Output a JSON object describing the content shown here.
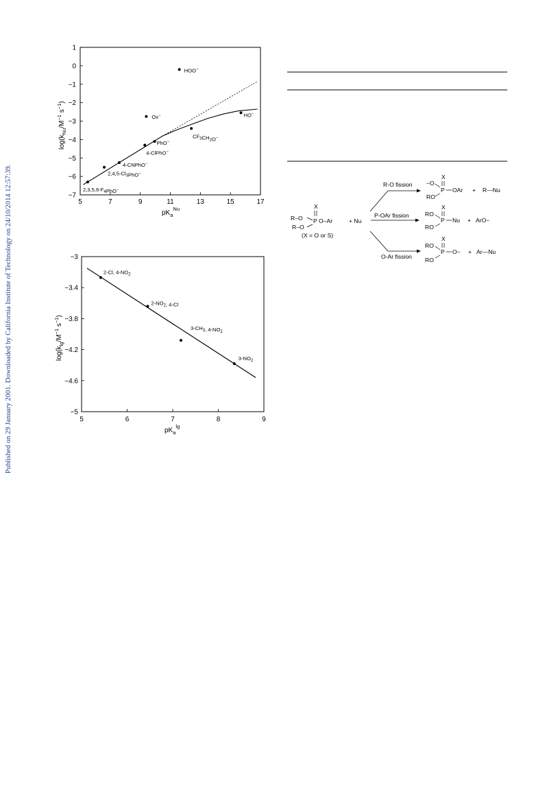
{
  "sidebar_text": "Published on 29 January 2001. Downloaded by California Institute of Technology on 24/10/2014 12:57:39.",
  "chart_data": [
    {
      "type": "scatter",
      "x_ticks": [
        "5",
        "7",
        "9",
        "11",
        "13",
        "15",
        "17"
      ],
      "y_ticks": [
        "1",
        "0",
        "−1",
        "−2",
        "−3",
        "−4",
        "−5",
        "−6",
        "−7"
      ],
      "xlim": [
        5,
        17
      ],
      "ylim": [
        -7,
        1
      ],
      "xlabel": {
        "main": "pK",
        "sub": "a",
        "sup": "Nu"
      },
      "ylabel": {
        "pre": "log(k",
        "sub": "Nu",
        "post": "/M",
        "sup": "−1",
        "tail": " s",
        "sup2": "−1",
        "end": ")"
      },
      "points": [
        {
          "x": 5.5,
          "y": -6.3,
          "label": "2,3,5,6-F4PhO−"
        },
        {
          "x": 6.6,
          "y": -5.5,
          "label": "2,4,5-Cl3PhO−"
        },
        {
          "x": 7.6,
          "y": -5.25,
          "label": "4-CNPhO−"
        },
        {
          "x": 9.3,
          "y": -4.3,
          "label": "4-ClPhO−"
        },
        {
          "x": 9.95,
          "y": -4.1,
          "label": "PhO−"
        },
        {
          "x": 9.4,
          "y": -2.75,
          "label": "Ox−"
        },
        {
          "x": 11.6,
          "y": -0.2,
          "label": "HOO−"
        },
        {
          "x": 12.4,
          "y": -3.4,
          "label": "CF3CH2O−"
        },
        {
          "x": 15.7,
          "y": -2.55,
          "label": "HO−"
        }
      ],
      "fit_solid": [
        [
          5.2,
          -6.45
        ],
        [
          10.5,
          -3.8
        ],
        [
          11.5,
          -3.45
        ],
        [
          12.5,
          -3.15
        ],
        [
          13.5,
          -2.85
        ],
        [
          14.5,
          -2.62
        ],
        [
          15.5,
          -2.45
        ],
        [
          16.8,
          -2.35
        ]
      ],
      "fit_dotted": [
        [
          10.5,
          -3.8
        ],
        [
          16.8,
          -0.85
        ]
      ]
    },
    {
      "type": "scatter",
      "x_ticks": [
        "5",
        "6",
        "7",
        "8",
        "9"
      ],
      "y_ticks": [
        "−3",
        "−3.4",
        "−3.8",
        "−4.2",
        "−4.6",
        "−5"
      ],
      "xlim": [
        5,
        9
      ],
      "ylim": [
        -5,
        -3
      ],
      "xlabel": {
        "main": "pK",
        "sub": "a",
        "sup": "lg"
      },
      "ylabel": {
        "pre": "log(k",
        "sub": "lg",
        "post": "/M",
        "sup": "−1",
        "tail": " s",
        "sup2": "−1",
        "end": ")"
      },
      "points": [
        {
          "x": 5.42,
          "y": -3.27,
          "label": "2-Cl, 4-NO2"
        },
        {
          "x": 6.45,
          "y": -3.64,
          "label": "2-NO2, 4-Cl"
        },
        {
          "x": 7.18,
          "y": -4.08,
          "label": "3-CH3, 4-NO2"
        },
        {
          "x": 8.35,
          "y": -4.38,
          "label": "3-NO2"
        }
      ],
      "fit_line": [
        [
          5.12,
          -3.15
        ],
        [
          8.82,
          -4.56
        ]
      ]
    }
  ],
  "scheme": {
    "x_note": "X",
    "reactant_r1": "R–O",
    "reactant_r2": "R–O",
    "reactant_p": "P",
    "reactant_o": "O–Ar",
    "plus_nu": "+  Nu",
    "x_condition": "(X = O or S)",
    "paths": [
      {
        "label": "R-O fission"
      },
      {
        "label": "P-OAr fission"
      },
      {
        "label": "O-Ar fission"
      }
    ],
    "products": {
      "p1": {
        "top": "X",
        "left_top": "−O",
        "center": "P",
        "right": "OAr",
        "left_bottom": "RO",
        "plus": "+",
        "extra": "R—Nu"
      },
      "p2": {
        "top": "X",
        "left_top": "RO",
        "center": "P",
        "right": "Nu",
        "left_bottom": "RO",
        "plus": "+",
        "extra": "ArO−"
      },
      "p3": {
        "top": "X",
        "left_top": "RO",
        "center": "P",
        "right": "O−",
        "left_bottom": "RO",
        "plus": "+",
        "extra": "Ar—Nu"
      }
    }
  }
}
